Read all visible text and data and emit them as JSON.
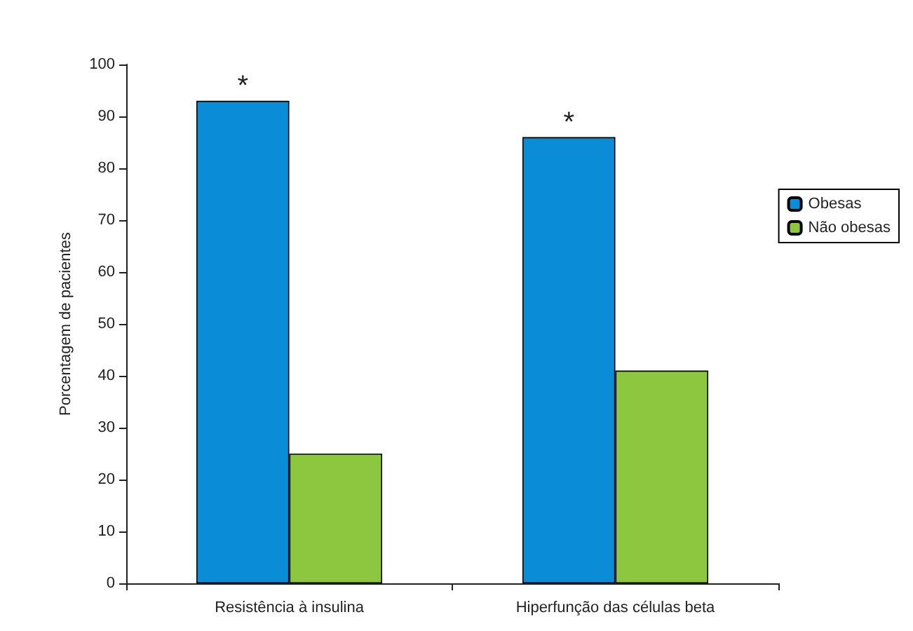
{
  "chart_data": {
    "type": "bar",
    "ylabel": "Porcentagem de pacientes",
    "categories": [
      "Resistência à insulina",
      "Hiperfunção das células beta"
    ],
    "series": [
      {
        "name": "Obesas",
        "color": "#0a8cd6",
        "values": [
          93,
          86
        ]
      },
      {
        "name": "Não obesas",
        "color": "#8dc63f",
        "values": [
          25,
          41
        ]
      }
    ],
    "ylim": [
      0,
      100
    ],
    "yticks": [
      0,
      10,
      20,
      30,
      40,
      50,
      60,
      70,
      80,
      90,
      100
    ],
    "grid": false,
    "legend": "right",
    "annotations": [
      {
        "text": "*",
        "x": "Resistência à insulina",
        "y": 93
      },
      {
        "text": "*",
        "x": "Hiperfunção das células beta",
        "y": 86
      }
    ]
  }
}
